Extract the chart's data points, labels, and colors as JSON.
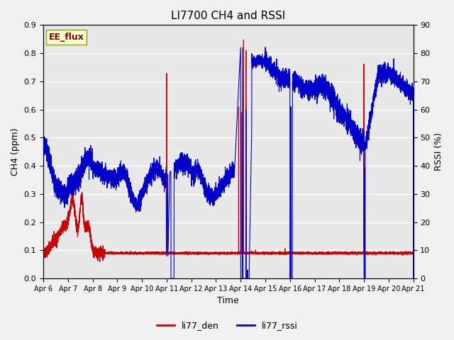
{
  "title": "LI7700 CH4 and RSSI",
  "xlabel": "Time",
  "ylabel_left": "CH4 (ppm)",
  "ylabel_right": "RSSI (%)",
  "ylim_left": [
    0.0,
    0.9
  ],
  "ylim_right": [
    0,
    90
  ],
  "yticks_left": [
    0.0,
    0.1,
    0.2,
    0.3,
    0.4,
    0.5,
    0.6,
    0.7,
    0.8,
    0.9
  ],
  "yticks_right": [
    0,
    10,
    20,
    30,
    40,
    50,
    60,
    70,
    80,
    90
  ],
  "site_label": "EE_flux",
  "legend_labels": [
    "li77_den",
    "li77_rssi"
  ],
  "line_color_den": "#cc0000",
  "line_color_rssi": "#0000cc",
  "fig_facecolor": "#f0f0f0",
  "axes_facecolor": "#e8e8e8",
  "x_tick_days": [
    6,
    7,
    8,
    9,
    10,
    11,
    12,
    13,
    14,
    15,
    16,
    17,
    18,
    19,
    20,
    21
  ],
  "x_tick_labels": [
    "Apr 6",
    "Apr 7",
    "Apr 8",
    "Apr 9",
    "Apr 10",
    "Apr 11",
    "Apr 12",
    "Apr 13",
    "Apr 14",
    "Apr 15",
    "Apr 16",
    "Apr 17",
    "Apr 18",
    "Apr 19",
    "Apr 20",
    "Apr 21"
  ]
}
